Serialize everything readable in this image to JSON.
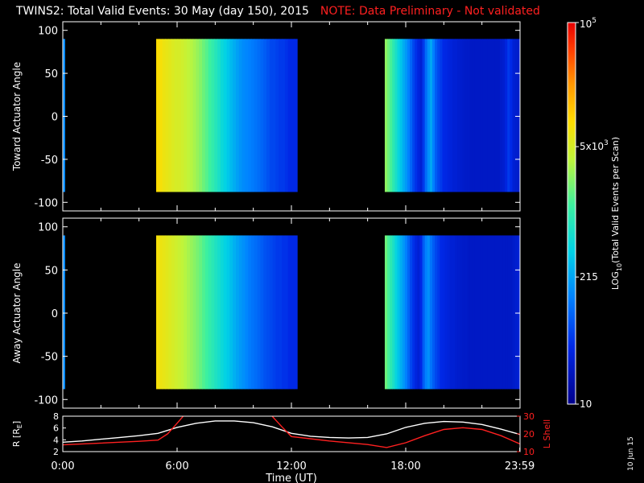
{
  "header": {
    "title": "TWINS2: Total Valid Events: 30 May (day 150), 2015",
    "note": "NOTE: Data Preliminary - Not validated"
  },
  "footer": {
    "date_stamp": "10 Jun 15"
  },
  "colors": {
    "background": "#000000",
    "note_red": "#ff2020",
    "ephem_r": "#ffffff",
    "ephem_lshell": "#ff2020"
  },
  "chart_data": [
    {
      "type": "heatmap",
      "panel": "top",
      "ylabel": "Toward Actuator Angle",
      "ylim": [
        -110,
        110
      ],
      "yticks": [
        100,
        50,
        0,
        -50,
        -100
      ],
      "xlim": [
        0,
        24
      ],
      "data_y_range": [
        -88,
        90
      ],
      "scale": "log",
      "segments": [
        {
          "t_start": 0.0,
          "t_end": 0.1,
          "columns": [
            150
          ]
        },
        {
          "t_start": 4.9,
          "t_end": 12.3,
          "columns": [
            9000,
            8000,
            7000,
            6500,
            6000,
            5500,
            5000,
            5000,
            4600,
            4200,
            3800,
            3400,
            3000,
            2600,
            2200,
            1800,
            1500,
            1200,
            1000,
            800,
            650,
            500,
            420,
            340,
            280,
            240,
            200,
            170,
            150,
            140,
            130,
            120,
            110,
            100,
            90,
            80,
            70,
            60,
            60,
            55,
            50,
            50,
            45,
            40,
            40,
            40
          ]
        },
        {
          "t_start": 16.9,
          "t_end": 23.99,
          "columns": [
            2400,
            1800,
            1300,
            900,
            650,
            450,
            330,
            240,
            180,
            130,
            90,
            60,
            45,
            35,
            30,
            50,
            100,
            160,
            220,
            130,
            80,
            60,
            50,
            40,
            38,
            35,
            33,
            30,
            30,
            28,
            27,
            26,
            25,
            25,
            24,
            24,
            24,
            24,
            24,
            24,
            24,
            24,
            24,
            24,
            24,
            24,
            26,
            28,
            35,
            50,
            40,
            30,
            28,
            26
          ]
        }
      ]
    },
    {
      "type": "heatmap",
      "panel": "bottom",
      "ylabel": "Away Actuator Angle",
      "ylim": [
        -110,
        110
      ],
      "yticks": [
        100,
        50,
        0,
        -50,
        -100
      ],
      "xlim": [
        0,
        24
      ],
      "data_y_range": [
        -88,
        90
      ],
      "scale": "log",
      "segments": [
        {
          "t_start": 0.0,
          "t_end": 0.1,
          "columns": [
            150
          ]
        },
        {
          "t_start": 4.9,
          "t_end": 12.3,
          "columns": [
            8000,
            7000,
            6500,
            6000,
            5500,
            5000,
            4600,
            4200,
            3800,
            3400,
            3000,
            2600,
            2300,
            2000,
            1700,
            1400,
            1200,
            1000,
            850,
            700,
            600,
            500,
            420,
            360,
            300,
            250,
            210,
            180,
            160,
            140,
            120,
            110,
            100,
            90,
            80,
            70,
            65,
            60,
            55,
            50,
            50,
            45,
            45,
            40,
            40,
            40
          ]
        },
        {
          "t_start": 16.9,
          "t_end": 23.99,
          "columns": [
            1800,
            1300,
            900,
            650,
            450,
            330,
            240,
            180,
            130,
            90,
            60,
            45,
            35,
            30,
            40,
            80,
            130,
            160,
            110,
            80,
            60,
            50,
            40,
            38,
            35,
            33,
            30,
            30,
            28,
            27,
            26,
            25,
            25,
            24,
            24,
            24,
            24,
            24,
            24,
            24,
            24,
            24,
            24,
            24,
            24,
            24,
            24,
            24,
            24,
            24,
            24,
            26,
            28,
            30
          ]
        }
      ]
    },
    {
      "type": "line",
      "panel": "ephemeris",
      "xlabel": "Time (UT)",
      "xlim": [
        0,
        24
      ],
      "xticks": [
        0,
        6,
        12,
        18,
        23.983
      ],
      "xtick_labels": [
        "0:00",
        "6:00",
        "12:00",
        "18:00",
        "23:59"
      ],
      "ylabel": "R [R",
      "ylabel_sub": "E",
      "ylabel_close": "]",
      "ylim": [
        2,
        8
      ],
      "yticks": [
        2,
        4,
        6,
        8
      ],
      "y2label": "L Shell",
      "y2lim": [
        10,
        30
      ],
      "y2ticks": [
        10,
        20,
        30
      ],
      "series": [
        {
          "axis": "left",
          "x": [
            0,
            1,
            2,
            3,
            4,
            5,
            6,
            7,
            8,
            9,
            10,
            11,
            12,
            13,
            14,
            15,
            16,
            17,
            18,
            19,
            20,
            21,
            22,
            23,
            24
          ],
          "y": [
            3.6,
            3.8,
            4.1,
            4.4,
            4.7,
            5.1,
            6.1,
            6.8,
            7.2,
            7.2,
            6.9,
            6.2,
            5.1,
            4.6,
            4.4,
            4.3,
            4.4,
            5.0,
            6.1,
            6.8,
            7.1,
            7.0,
            6.6,
            5.8,
            4.9
          ]
        },
        {
          "axis": "right",
          "x": [
            0,
            2,
            4,
            5,
            5.5,
            6,
            6.4,
            10.9,
            11.5,
            12,
            14,
            16,
            17,
            18,
            19,
            20,
            21,
            22,
            23,
            24
          ],
          "y": [
            13.8,
            14.8,
            15.8,
            16.5,
            20,
            26,
            31,
            31,
            24,
            18.5,
            16,
            14,
            12.3,
            15,
            19,
            22.5,
            23.5,
            22.5,
            19,
            14.3
          ]
        }
      ]
    }
  ],
  "colorbar": {
    "ylabel": "LOG",
    "ylabel_sub": "10",
    "ylabel_rest": "(Total Valid Events per Scan)",
    "range": [
      10,
      100000
    ],
    "labels": [
      {
        "value": 100000,
        "base": "10",
        "sup": "5"
      },
      {
        "value": 5000,
        "base": "5x10",
        "sup": "3"
      },
      {
        "value": 215,
        "base": "215",
        "sup": ""
      },
      {
        "value": 10,
        "base": "10",
        "sup": ""
      }
    ]
  }
}
